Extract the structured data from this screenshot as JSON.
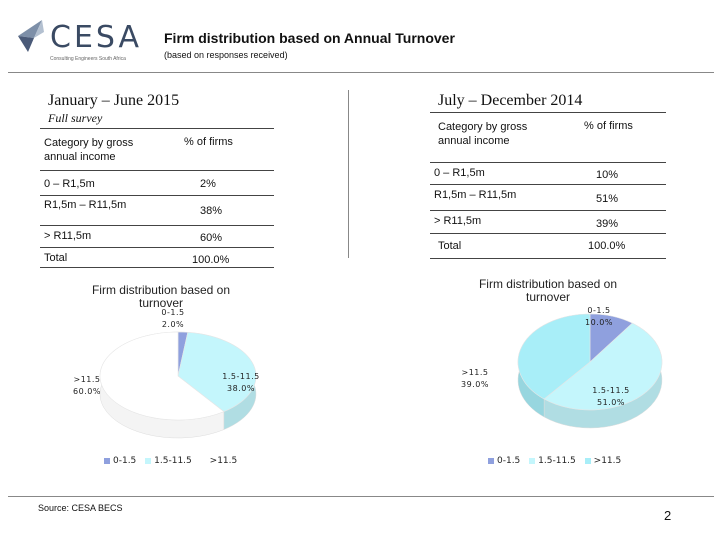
{
  "header": {
    "logo_text": "CESA",
    "logo_tagline": "Consulting Engineers South Africa",
    "title": "Firm distribution based on Annual Turnover",
    "subtitle": "(based on responses received)"
  },
  "left": {
    "period": "January – June 2015",
    "survey_note": "Full survey",
    "table": {
      "headers": [
        "Category by gross annual income",
        "% of firms"
      ],
      "rows": [
        {
          "category": "0 – R1,5m",
          "percent": "2%"
        },
        {
          "category": "R1,5m – R11,5m",
          "percent": "38%"
        },
        {
          "category": "> R11,5m",
          "percent": "60%"
        },
        {
          "category": "Total",
          "percent": "100.0%"
        }
      ]
    }
  },
  "right": {
    "period": "July – December 2014",
    "table": {
      "headers": [
        "Category by gross annual income",
        "% of firms"
      ],
      "rows": [
        {
          "category": "0 – R1,5m",
          "percent": "10%"
        },
        {
          "category": "R1,5m – R11,5m",
          "percent": "51%"
        },
        {
          "category": "> R11,5m",
          "percent": "39%"
        },
        {
          "category": "Total",
          "percent": "100.0%"
        }
      ]
    }
  },
  "chart_data": [
    {
      "type": "pie",
      "title": "Firm distribution based on turnover",
      "categories": [
        "0-1.5",
        "1.5-11.5",
        ">11.5"
      ],
      "values": [
        2.0,
        38.0,
        60.0
      ],
      "data_labels": [
        {
          "name": "0-1.5",
          "value": "2.0%"
        },
        {
          "name": "1.5-11.5",
          "value": "38.0%"
        },
        {
          "name": ">11.5",
          "value": "60.0%"
        }
      ],
      "colors": [
        "#8FA0DE",
        "#C4F6FC",
        "#FFFFFF"
      ],
      "legend": "bottom"
    },
    {
      "type": "pie",
      "title": "Firm distribution based on turnover",
      "categories": [
        "0-1.5",
        "1.5-11.5",
        ">11.5"
      ],
      "values": [
        10.0,
        51.0,
        39.0
      ],
      "data_labels": [
        {
          "name": "0-1.5",
          "value": "10.0%"
        },
        {
          "name": "1.5-11.5",
          "value": "51.0%"
        },
        {
          "name": ">11.5",
          "value": "39.0%"
        }
      ],
      "colors": [
        "#8FA0DE",
        "#C4F6FC",
        "#A8EEF8"
      ],
      "legend": "bottom"
    }
  ],
  "footer": {
    "source": "Source: CESA BECS",
    "page_number": "2"
  }
}
